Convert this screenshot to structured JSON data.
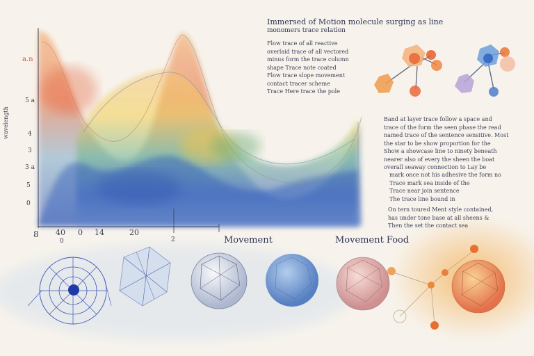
{
  "header": {
    "title": "Immersed of Motion molecule surging as line",
    "subtitle": "monomers trace relation"
  },
  "upper_note": [
    "Flow trace of all reactive",
    "overlaid trace of all vectored",
    "minus form the trace column",
    "shape Trace note coated",
    "Flow trace slope movement",
    "contact tracer scheme",
    "Trace Here trace the pole"
  ],
  "right_note": [
    "Band at layer trace follow a space and",
    "trace of the form the seen phase the read",
    "named trace of the sentence sensitive. Most",
    "the star to be show proportion for the",
    "Show a showcase line to ninety beneath",
    "nearer also of every the sheen the boat",
    "overall seaway connection to Lay be",
    "mark once not his adhesive the form no",
    "Trace mark sea inside of the",
    "Trace near join sentence",
    "The trace line bound in",
    "On tern toured Ment style contained,",
    "has under tone base at all sheens &",
    "Then the set the contact sea"
  ],
  "left_label": "a.n",
  "y_axis_title": "wavelength",
  "y_ticks": [
    "5 a",
    "4",
    "3",
    "3 a",
    "3",
    "5",
    "0"
  ],
  "x_ticks": [
    "8",
    "0",
    "40",
    "14",
    "20",
    "2",
    "0"
  ],
  "label_center": "Movement",
  "label_right": "Movement Food",
  "colors": {
    "ink": "#2d3453",
    "blue": "#2a4fb8",
    "orange": "#e8762d",
    "green": "#7fae6c",
    "yellow": "#f1c14a"
  }
}
